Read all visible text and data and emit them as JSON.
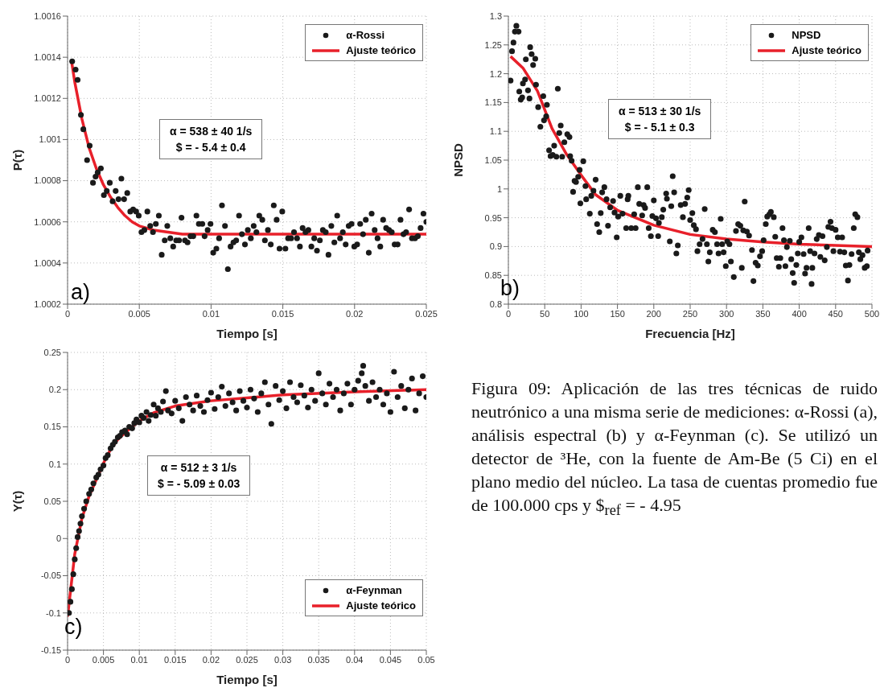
{
  "chart_data": [
    {
      "type": "scatter",
      "xlabel": "Tiempo [s]",
      "ylabel": "P(τ)",
      "xlim": [
        0,
        0.025
      ],
      "xticks": [
        0,
        0.005,
        0.01,
        0.015,
        0.02,
        0.025
      ],
      "ylim": [
        1.0002,
        1.0016
      ],
      "yticks": [
        1.0002,
        1.0004,
        1.0006,
        1.0008,
        1.001,
        1.0012,
        1.0014,
        1.0016
      ],
      "grid": true,
      "legend": "top right",
      "line_style": "solid",
      "annotations": [
        "a)",
        "α = 538 ± 40 1/s",
        "$ = - 5.4 ± 0.4"
      ],
      "series": [
        {
          "name": "α-Rossi",
          "type": "scatter",
          "marker": "circle",
          "color": "#1a1a1a",
          "x": [
            0.00032,
            0.00056,
            0.0007,
            0.00093,
            0.0011,
            0.00136,
            0.00154,
            0.00177,
            0.00195,
            0.0021,
            0.00232,
            0.00253,
            0.00273,
            0.00294,
            0.00314,
            0.00335,
            0.00355,
            0.00375,
            0.00394,
            0.00416,
            0.00437,
            0.00457,
            0.00478,
            0.00496,
            0.00515,
            0.00535,
            0.00556,
            0.00576,
            0.00595,
            0.00615,
            0.00636,
            0.00656,
            0.00677,
            0.00695,
            0.00716,
            0.00736,
            0.00757,
            0.00777,
            0.00794,
            0.00818,
            0.00836,
            0.00857,
            0.00876,
            0.00898,
            0.00915,
            0.00939,
            0.00955,
            0.00976,
            0.00996,
            0.01015,
            0.01037,
            0.01056,
            0.01076,
            0.01097,
            0.01117,
            0.01136,
            0.01156,
            0.01175,
            0.01195,
            0.01215,
            0.01236,
            0.01256,
            0.01277,
            0.01297,
            0.01316,
            0.01336,
            0.01357,
            0.01375,
            0.01396,
            0.01416,
            0.01437,
            0.01457,
            0.01477,
            0.01496,
            0.01518,
            0.01537,
            0.01558,
            0.01578,
            0.01599,
            0.01619,
            0.01638,
            0.01658,
            0.01678,
            0.01699,
            0.01719,
            0.01738,
            0.01758,
            0.01779,
            0.01799,
            0.01818,
            0.01838,
            0.01859,
            0.01879,
            0.01899,
            0.01918,
            0.01938,
            0.01959,
            0.01979,
            0.01998,
            0.02018,
            0.02039,
            0.02059,
            0.02078,
            0.02099,
            0.02119,
            0.0214,
            0.0216,
            0.02179,
            0.02199,
            0.0222,
            0.0224,
            0.02259,
            0.02279,
            0.023,
            0.0232,
            0.02341,
            0.02359,
            0.0238,
            0.024,
            0.02421,
            0.02441,
            0.0246,
            0.0248,
            0.025
          ],
          "values": [
            1.00138,
            1.00134,
            1.00129,
            1.00112,
            1.00105,
            1.0009,
            1.00097,
            1.00079,
            1.00082,
            1.00084,
            1.00086,
            1.00073,
            1.00075,
            1.00079,
            1.0007,
            1.00075,
            1.00071,
            1.00081,
            1.00071,
            1.00074,
            1.00065,
            1.00066,
            1.00065,
            1.00063,
            1.00055,
            1.00056,
            1.00065,
            1.00058,
            1.00055,
            1.00059,
            1.00063,
            1.00044,
            1.00051,
            1.00058,
            1.00052,
            1.00048,
            1.00051,
            1.00051,
            1.00062,
            1.00051,
            1.0005,
            1.00053,
            1.00053,
            1.00063,
            1.00059,
            1.00059,
            1.00053,
            1.00056,
            1.00059,
            1.00045,
            1.00047,
            1.00052,
            1.00068,
            1.00058,
            1.00037,
            1.00048,
            1.0005,
            1.00051,
            1.00063,
            1.00054,
            1.00049,
            1.00056,
            1.00052,
            1.00058,
            1.00055,
            1.00063,
            1.00061,
            1.00051,
            1.00056,
            1.00049,
            1.00068,
            1.00061,
            1.00047,
            1.00065,
            1.00047,
            1.00052,
            1.00052,
            1.00055,
            1.00052,
            1.00048,
            1.00057,
            1.00055,
            1.00056,
            1.00048,
            1.00052,
            1.00046,
            1.00051,
            1.00056,
            1.00055,
            1.00044,
            1.00058,
            1.0005,
            1.00063,
            1.00052,
            1.00055,
            1.00049,
            1.00058,
            1.00059,
            1.00048,
            1.00049,
            1.00059,
            1.00054,
            1.00061,
            1.00045,
            1.00064,
            1.00056,
            1.00052,
            1.00048,
            1.00061,
            1.00057,
            1.00056,
            1.00055,
            1.00049,
            1.00049,
            1.00061,
            1.00054,
            1.00055,
            1.00066,
            1.00052,
            1.00052,
            1.00053,
            1.00057,
            1.00064,
            1.0006
          ]
        },
        {
          "name": "Ajuste teórico",
          "type": "line",
          "color": "#e8202a",
          "x": [
            0.0003,
            0.0005,
            0.001,
            0.0015,
            0.002,
            0.0025,
            0.003,
            0.0035,
            0.004,
            0.0045,
            0.005,
            0.006,
            0.007,
            0.008,
            0.01,
            0.015,
            0.02,
            0.025
          ],
          "values": [
            1.00137,
            1.00128,
            1.0011,
            1.00096,
            1.00086,
            1.00078,
            1.00072,
            1.00067,
            1.00063,
            1.0006,
            1.00058,
            1.00056,
            1.00055,
            1.00054,
            1.00054,
            1.00054,
            1.00054,
            1.00054
          ]
        }
      ]
    },
    {
      "type": "scatter",
      "xlabel": "Frecuencia [Hz]",
      "ylabel": "NPSD",
      "xlim": [
        0,
        500
      ],
      "xticks": [
        0,
        50,
        100,
        150,
        200,
        250,
        300,
        350,
        400,
        450,
        500
      ],
      "ylim": [
        0.8,
        1.3
      ],
      "yticks": [
        0.8,
        0.85,
        0.9,
        0.95,
        1,
        1.05,
        1.1,
        1.15,
        1.2,
        1.25,
        1.3
      ],
      "grid": true,
      "legend": "top right",
      "line_style": "solid",
      "annotations": [
        "b)",
        "α = 513 ± 30 1/s",
        "$ = - 5.1 ± 0.3"
      ],
      "series": [
        {
          "name": "NPSD",
          "type": "scatter",
          "marker": "circle",
          "color": "#1a1a1a",
          "x": [
            3,
            5,
            7,
            9,
            11,
            14,
            15,
            17,
            19,
            20,
            23,
            24,
            27,
            29,
            30,
            32,
            34,
            37,
            38,
            41,
            44,
            48,
            49,
            52,
            53,
            56,
            58,
            61,
            63,
            66,
            68,
            70,
            72,
            74,
            77,
            81,
            84,
            85,
            87,
            89,
            91,
            93,
            96,
            98,
            99,
            103,
            106,
            107,
            112,
            114,
            117,
            120,
            122,
            125,
            127,
            129,
            132,
            135,
            137,
            140,
            144,
            146,
            149,
            151,
            154,
            157,
            162,
            164,
            165,
            169,
            173,
            175,
            178,
            180,
            184,
            186,
            188,
            191,
            193,
            196,
            198,
            200,
            203,
            206,
            207,
            211,
            213,
            217,
            218,
            222,
            224,
            226,
            228,
            231,
            233,
            237,
            240,
            243,
            246,
            248,
            250,
            253,
            255,
            258,
            260,
            263,
            267,
            270,
            273,
            275,
            277,
            281,
            284,
            287,
            289,
            292,
            294,
            296,
            299,
            301,
            304,
            306,
            310,
            313,
            316,
            319,
            321,
            323,
            325,
            328,
            331,
            335,
            337,
            340,
            343,
            346,
            349,
            351,
            354,
            356,
            359,
            361,
            365,
            367,
            369,
            372,
            374,
            377,
            379,
            381,
            383,
            387,
            389,
            391,
            393,
            396,
            398,
            400,
            403,
            406,
            408,
            410,
            413,
            415,
            417,
            418,
            421,
            424,
            427,
            429,
            432,
            435,
            438,
            440,
            443,
            445,
            447,
            450,
            453,
            456,
            459,
            462,
            464,
            467,
            469,
            472,
            475,
            477,
            480,
            482,
            484,
            487,
            490,
            493,
            494
          ],
          "values": [
            1.188,
            1.239,
            1.254,
            1.273,
            1.283,
            1.273,
            1.169,
            1.155,
            1.159,
            1.183,
            1.19,
            1.225,
            1.171,
            1.157,
            1.246,
            1.234,
            1.215,
            1.226,
            1.181,
            1.142,
            1.108,
            1.161,
            1.119,
            1.126,
            1.146,
            1.067,
            1.057,
            1.059,
            1.075,
            1.056,
            1.174,
            1.097,
            1.11,
            1.056,
            1.081,
            1.095,
            1.09,
            1.057,
            1.049,
            0.995,
            1.014,
            1.012,
            1.021,
            1.033,
            0.975,
            1.048,
            1.005,
            0.982,
            0.957,
            0.988,
            0.997,
            1.016,
            0.939,
            0.925,
            0.958,
            0.994,
            1.003,
            0.982,
            0.936,
            0.968,
            0.979,
            0.959,
            0.916,
            0.952,
            0.988,
            0.957,
            0.932,
            0.982,
            0.988,
            0.932,
            0.956,
            0.932,
            1.003,
            0.974,
            0.954,
            0.972,
            0.967,
            1.003,
            0.932,
            0.918,
            0.953,
            0.98,
            0.949,
            0.918,
            0.941,
            0.951,
            0.964,
            0.992,
            0.983,
            0.909,
            0.97,
            1.022,
            0.994,
            0.888,
            0.902,
            0.972,
            0.951,
            0.974,
            0.985,
            0.998,
            0.946,
            0.958,
            0.937,
            0.93,
            0.892,
            0.904,
            0.913,
            0.965,
            0.904,
            0.874,
            0.89,
            0.929,
            0.925,
            0.904,
            0.888,
            0.948,
            0.904,
            0.89,
            0.866,
            0.909,
            0.904,
            0.874,
            0.847,
            0.927,
            0.939,
            0.936,
            0.863,
            0.928,
            0.978,
            0.926,
            0.919,
            0.894,
            0.84,
            0.872,
            0.867,
            0.883,
            0.892,
            0.911,
            0.939,
            0.952,
            0.956,
            0.96,
            0.951,
            0.917,
            0.88,
            0.865,
            0.88,
            0.932,
            0.911,
            0.866,
            0.899,
            0.91,
            0.878,
            0.854,
            0.837,
            0.868,
            0.888,
            0.908,
            0.916,
            0.887,
            0.853,
            0.863,
            0.932,
            0.892,
            0.835,
            0.863,
            0.888,
            0.913,
            0.92,
            0.882,
            0.918,
            0.876,
            0.899,
            0.934,
            0.943,
            0.932,
            0.892,
            0.929,
            0.916,
            0.891,
            0.916,
            0.89,
            0.867,
            0.841,
            0.868,
            0.887,
            0.932,
            0.956,
            0.951,
            0.89,
            0.878,
            0.885,
            0.863,
            0.866,
            0.893
          ]
        },
        {
          "name": "Ajuste teórico",
          "type": "line",
          "color": "#e8202a",
          "x": [
            3,
            20,
            40,
            60,
            80,
            100,
            120,
            150,
            200,
            250,
            300,
            350,
            400,
            450,
            500
          ],
          "values": [
            1.23,
            1.21,
            1.17,
            1.105,
            1.06,
            1.024,
            0.99,
            0.963,
            0.937,
            0.921,
            0.913,
            0.908,
            0.904,
            0.902,
            0.9
          ]
        }
      ]
    },
    {
      "type": "scatter",
      "xlabel": "Tiempo [s]",
      "ylabel": "Y(τ)",
      "xlim": [
        0,
        0.05
      ],
      "xticks": [
        0,
        0.005,
        0.01,
        0.015,
        0.02,
        0.025,
        0.03,
        0.035,
        0.04,
        0.045,
        0.05
      ],
      "ylim": [
        -0.15,
        0.25
      ],
      "yticks": [
        -0.15,
        -0.1,
        -0.05,
        0,
        0.05,
        0.1,
        0.15,
        0.2,
        0.25
      ],
      "grid": true,
      "legend": "bottom right",
      "line_style": "solid",
      "annotations": [
        "c)",
        "α = 512 ± 3 1/s",
        "$ = - 5.09 ± 0.03"
      ],
      "series": [
        {
          "name": "α-Feynman",
          "type": "scatter",
          "marker": "circle",
          "color": "#1a1a1a",
          "x": [
            0.0002,
            0.0004,
            0.0006,
            0.0008,
            0.001,
            0.0012,
            0.0014,
            0.0016,
            0.0018,
            0.002,
            0.0023,
            0.0026,
            0.003,
            0.0033,
            0.0036,
            0.004,
            0.0043,
            0.0046,
            0.005,
            0.0053,
            0.0056,
            0.006,
            0.0063,
            0.0066,
            0.007,
            0.0073,
            0.0076,
            0.008,
            0.0083,
            0.0086,
            0.009,
            0.0093,
            0.0096,
            0.01,
            0.0103,
            0.0106,
            0.011,
            0.0113,
            0.0116,
            0.012,
            0.0123,
            0.0126,
            0.013,
            0.0133,
            0.0137,
            0.014,
            0.0145,
            0.015,
            0.0155,
            0.016,
            0.0165,
            0.017,
            0.0175,
            0.018,
            0.0185,
            0.019,
            0.0195,
            0.02,
            0.0205,
            0.021,
            0.0215,
            0.022,
            0.0225,
            0.023,
            0.0235,
            0.024,
            0.0245,
            0.025,
            0.0255,
            0.026,
            0.0265,
            0.027,
            0.0275,
            0.028,
            0.0284,
            0.029,
            0.0295,
            0.03,
            0.0305,
            0.031,
            0.0315,
            0.032,
            0.0325,
            0.033,
            0.0335,
            0.034,
            0.0345,
            0.035,
            0.0355,
            0.036,
            0.0365,
            0.037,
            0.0375,
            0.038,
            0.0385,
            0.039,
            0.0395,
            0.04,
            0.0405,
            0.041,
            0.0412,
            0.0415,
            0.042,
            0.0425,
            0.043,
            0.0435,
            0.044,
            0.0445,
            0.045,
            0.0455,
            0.046,
            0.0465,
            0.047,
            0.0475,
            0.048,
            0.0485,
            0.049,
            0.0495,
            0.05
          ],
          "values": [
            -0.1,
            -0.085,
            -0.068,
            -0.048,
            -0.028,
            -0.013,
            0.002,
            0.01,
            0.02,
            0.03,
            0.04,
            0.05,
            0.06,
            0.066,
            0.074,
            0.082,
            0.086,
            0.093,
            0.098,
            0.108,
            0.112,
            0.121,
            0.126,
            0.13,
            0.136,
            0.138,
            0.143,
            0.145,
            0.14,
            0.15,
            0.148,
            0.155,
            0.16,
            0.156,
            0.165,
            0.162,
            0.17,
            0.158,
            0.166,
            0.18,
            0.165,
            0.175,
            0.17,
            0.184,
            0.198,
            0.172,
            0.168,
            0.185,
            0.175,
            0.158,
            0.19,
            0.18,
            0.172,
            0.192,
            0.178,
            0.17,
            0.186,
            0.196,
            0.174,
            0.19,
            0.204,
            0.178,
            0.195,
            0.183,
            0.172,
            0.198,
            0.185,
            0.176,
            0.2,
            0.188,
            0.17,
            0.195,
            0.21,
            0.18,
            0.154,
            0.205,
            0.186,
            0.198,
            0.175,
            0.21,
            0.19,
            0.183,
            0.206,
            0.192,
            0.176,
            0.2,
            0.185,
            0.222,
            0.195,
            0.18,
            0.208,
            0.19,
            0.2,
            0.172,
            0.195,
            0.208,
            0.18,
            0.2,
            0.212,
            0.222,
            0.232,
            0.205,
            0.185,
            0.21,
            0.19,
            0.2,
            0.18,
            0.195,
            0.17,
            0.224,
            0.19,
            0.205,
            0.175,
            0.2,
            0.215,
            0.172,
            0.195,
            0.218,
            0.19
          ]
        },
        {
          "name": "Ajuste teórico",
          "type": "line",
          "color": "#e8202a",
          "x": [
            0,
            0.001,
            0.002,
            0.003,
            0.004,
            0.005,
            0.006,
            0.007,
            0.008,
            0.01,
            0.012,
            0.015,
            0.02,
            0.025,
            0.03,
            0.04,
            0.05
          ],
          "values": [
            -0.105,
            -0.021,
            0.027,
            0.057,
            0.079,
            0.101,
            0.12,
            0.133,
            0.142,
            0.158,
            0.169,
            0.178,
            0.185,
            0.189,
            0.193,
            0.197,
            0.2
          ]
        }
      ]
    },
    {
      "type": "other",
      "annotations": [
        "Figura 09: Aplicación de las tres técnicas de ruido neutrónico a una misma serie de mediciones: α-Rossi (a), análisis espectral (b) y α-Feynman (c). Se utilizó un detector de ³He, con la fuente de Am-Be (5 Ci) en el plano medio del núcleo. La tasa de cuentas promedio fue de 100.000 cps y $$_{ref}$ = - 4.95"
      ]
    }
  ]
}
